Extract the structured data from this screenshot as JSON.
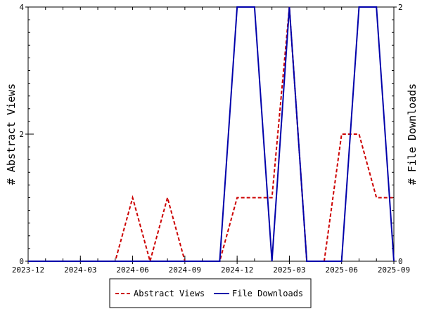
{
  "chart_data": {
    "type": "line",
    "x": [
      "2023-12",
      "2024-01",
      "2024-02",
      "2024-03",
      "2024-04",
      "2024-05",
      "2024-06",
      "2024-07",
      "2024-08",
      "2024-09",
      "2024-10",
      "2024-11",
      "2024-12",
      "2025-01",
      "2025-02",
      "2025-03",
      "2025-04",
      "2025-05",
      "2025-06",
      "2025-07",
      "2025-08",
      "2025-09"
    ],
    "x_ticks": [
      "2023-12",
      "2024-03",
      "2024-06",
      "2024-09",
      "2024-12",
      "2025-03",
      "2025-06",
      "2025-09"
    ],
    "series": [
      {
        "name": "Abstract Views",
        "axis": "left",
        "color": "#cc0000",
        "dash": "dashed",
        "values": [
          0,
          0,
          0,
          0,
          0,
          0,
          1,
          0,
          1,
          0,
          0,
          0,
          1,
          1,
          1,
          4,
          0,
          0,
          2,
          2,
          1,
          1
        ]
      },
      {
        "name": "File Downloads",
        "axis": "right",
        "color": "#0000aa",
        "dash": "solid",
        "values": [
          0,
          0,
          0,
          0,
          0,
          0,
          0,
          0,
          0,
          0,
          0,
          0,
          2,
          2,
          0,
          2,
          0,
          0,
          0,
          2,
          2,
          0
        ]
      }
    ],
    "ylabel": "# Abstract Views",
    "y2label": "# File Downloads",
    "ylim": [
      0,
      4
    ],
    "y2lim": [
      0,
      2
    ],
    "y_ticks": [
      0,
      2,
      4
    ],
    "y2_ticks": [
      0,
      2
    ],
    "grid": false,
    "legend_position": "bottom"
  }
}
